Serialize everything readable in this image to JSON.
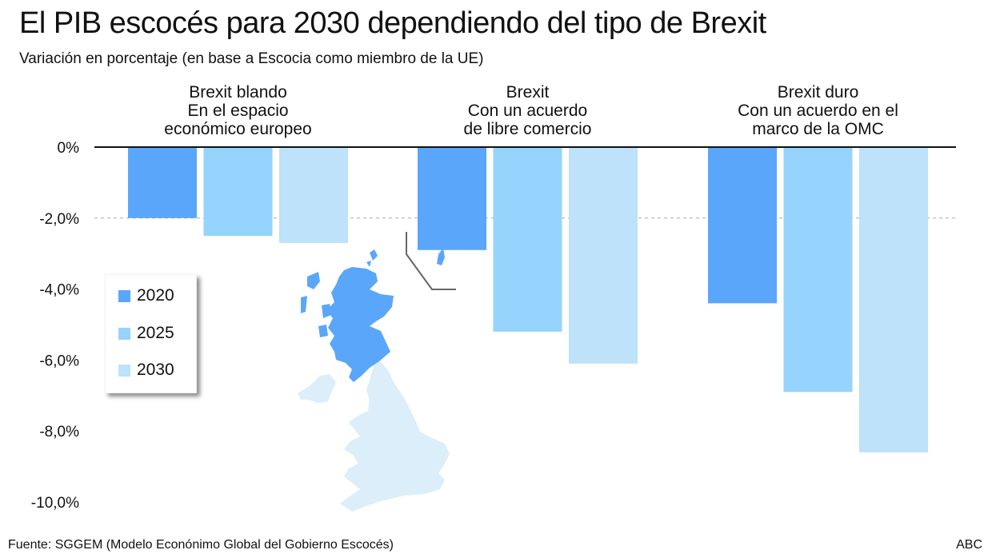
{
  "header": {
    "title": "El PIB escocés para 2030 dependiendo del tipo de Brexit",
    "subtitle": "Variación en porcentaje (en base a Escocia como miembro de la UE)"
  },
  "footer": {
    "source": "Fuente: SGGEM (Modelo Econónimo Global del Gobierno Escocés)",
    "brand": "ABC"
  },
  "legend": {
    "items": [
      {
        "label": "2020",
        "color": "#5aa6fb"
      },
      {
        "label": "2025",
        "color": "#96d3fd"
      },
      {
        "label": "2030",
        "color": "#bde2f9"
      }
    ]
  },
  "map": {
    "scotland_color": "#5aa6fb",
    "rest_uk_color": "#dbeef9",
    "icon": "uk-map-icon"
  },
  "chart_data": {
    "type": "bar",
    "title": "El PIB escocés para 2030 dependiendo del tipo de Brexit",
    "subtitle": "Variación en porcentaje (en base a Escocia como miembro de la UE)",
    "xlabel": "",
    "ylabel": "",
    "ylim": [
      -10,
      0
    ],
    "yticks": [
      0,
      -2,
      -4,
      -6,
      -8,
      -10
    ],
    "ytick_labels": [
      "0%",
      "-2,0%",
      "-4,0%",
      "-6,0%",
      "-8,0%",
      "-10,0%"
    ],
    "grid": "dashed line at -2,0%",
    "legend_position": "left-middle",
    "categories": [
      [
        "Brexit blando",
        "En el espacio",
        "económico europeo"
      ],
      [
        "Brexit",
        "Con un acuerdo",
        "de libre comercio"
      ],
      [
        "Brexit duro",
        "Con un acuerdo en el",
        "marco de la OMC"
      ]
    ],
    "series": [
      {
        "name": "2020",
        "color": "#5aa6fb",
        "values": [
          -2.0,
          -2.9,
          -4.4
        ]
      },
      {
        "name": "2025",
        "color": "#96d3fd",
        "values": [
          -2.5,
          -5.2,
          -6.9
        ]
      },
      {
        "name": "2030",
        "color": "#bde2f9",
        "values": [
          -2.7,
          -6.1,
          -8.6
        ]
      }
    ]
  }
}
